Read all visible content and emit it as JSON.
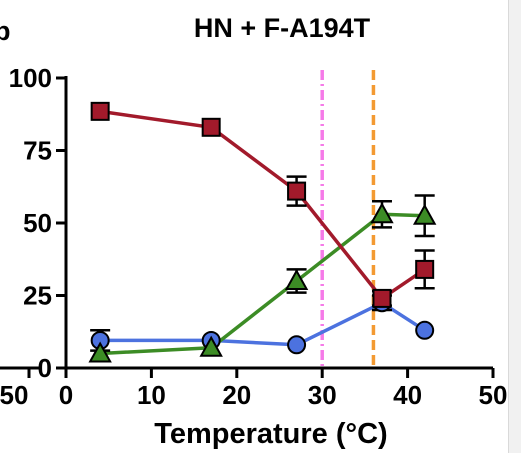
{
  "panel_letter": "b",
  "chart_data": {
    "type": "line",
    "title": "HN + F-A194T",
    "xlabel": "Temperature (°C)",
    "ylabel": "",
    "xlim": [
      0,
      50
    ],
    "ylim": [
      0,
      100
    ],
    "x_ticks": [
      "0",
      "10",
      "20",
      "30",
      "40",
      "50"
    ],
    "y_ticks": [
      "0",
      "25",
      "50",
      "75",
      "100"
    ],
    "left_panel_tick": "50",
    "grid": false,
    "reference_lines": [
      {
        "x": 30,
        "color": "#f57ae8",
        "style": "dash-dot"
      },
      {
        "x": 36,
        "color": "#f39a32",
        "style": "dashed"
      }
    ],
    "series": [
      {
        "marker": "square",
        "color": "#a21a2b",
        "x": [
          4,
          17,
          27,
          37,
          42
        ],
        "y": [
          88.5,
          83,
          61,
          24,
          34
        ],
        "err": [
          0,
          0,
          5,
          2.5,
          6.5
        ]
      },
      {
        "marker": "triangle",
        "color": "#3c8c25",
        "x": [
          4,
          17,
          27,
          37,
          42
        ],
        "y": [
          5,
          7,
          30,
          53,
          52.5
        ],
        "err": [
          0,
          0,
          4,
          4.5,
          7
        ]
      },
      {
        "marker": "circle",
        "color": "#4c72df",
        "x": [
          4,
          17,
          27,
          37,
          42
        ],
        "y": [
          9.5,
          9.5,
          8,
          22.5,
          13
        ],
        "err": [
          3.5,
          0,
          0,
          2.5,
          0
        ]
      }
    ]
  }
}
